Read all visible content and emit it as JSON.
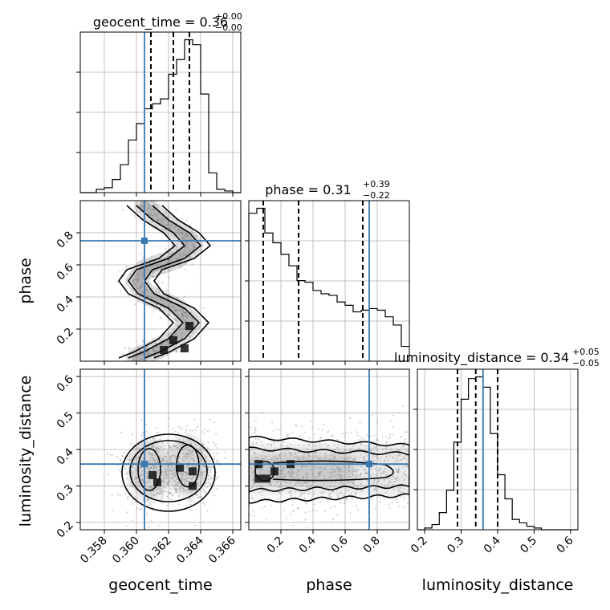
{
  "chart_data": {
    "type": "corner",
    "parameters": [
      "geocent_time",
      "phase",
      "luminosity_distance"
    ],
    "truths": [
      0.3605,
      0.75,
      0.36
    ],
    "truth_color": "#3b78b0",
    "grid": true,
    "panels": {
      "hist_geocent_time": {
        "title": "geocent_time = 0.36",
        "title_sup": "+0.00",
        "title_sub": "−0.00",
        "xlim": [
          0.3565,
          0.3665
        ],
        "quantiles": [
          0.3609,
          0.3623,
          0.3633
        ],
        "bin_edges": [
          0.3565,
          0.357,
          0.3575,
          0.358,
          0.3585,
          0.359,
          0.3595,
          0.36,
          0.3605,
          0.361,
          0.3615,
          0.362,
          0.3625,
          0.363,
          0.3635,
          0.364,
          0.3645,
          0.365,
          0.3655,
          0.366,
          0.3665
        ],
        "counts": [
          0,
          0,
          2,
          3,
          8,
          17,
          32,
          42,
          51,
          54,
          57,
          72,
          81,
          93,
          90,
          60,
          12,
          2,
          1,
          0
        ]
      },
      "hist_phase": {
        "title": "phase = 0.31",
        "title_sup": "+0.39",
        "title_sub": "−0.22",
        "xlim": [
          0.0,
          1.0
        ],
        "quantiles": [
          0.09,
          0.31,
          0.71
        ],
        "bin_edges": [
          0.0,
          0.05,
          0.1,
          0.15,
          0.2,
          0.25,
          0.3,
          0.35,
          0.4,
          0.45,
          0.5,
          0.55,
          0.6,
          0.65,
          0.7,
          0.75,
          0.8,
          0.85,
          0.9,
          0.95,
          1.0
        ],
        "counts": [
          90,
          93,
          78,
          72,
          65,
          58,
          49,
          48,
          43,
          41,
          40,
          36,
          34,
          30,
          31,
          32,
          31,
          27,
          22,
          9
        ]
      },
      "hist_luminosity_distance": {
        "title": "luminosity_distance = 0.34",
        "title_sup": "+0.05",
        "title_sub": "−0.05",
        "xlim": [
          0.18,
          0.62
        ],
        "quantiles": [
          0.29,
          0.34,
          0.4
        ],
        "bin_edges": [
          0.18,
          0.2,
          0.22,
          0.24,
          0.26,
          0.28,
          0.3,
          0.32,
          0.34,
          0.36,
          0.38,
          0.4,
          0.42,
          0.44,
          0.46,
          0.48,
          0.5,
          0.52,
          0.54,
          0.56,
          0.58,
          0.6,
          0.62
        ],
        "counts": [
          0,
          1,
          3,
          10,
          23,
          51,
          76,
          88,
          89,
          83,
          56,
          32,
          18,
          6,
          4,
          2,
          1,
          0,
          0,
          0,
          0,
          0
        ]
      },
      "phase_vs_geocent_time": {
        "xlim": [
          0.3565,
          0.3665
        ],
        "ylim": [
          0.0,
          1.0
        ],
        "density_path": [
          [
            0.3605,
            0.97
          ],
          [
            0.3615,
            0.88
          ],
          [
            0.3628,
            0.8
          ],
          [
            0.3635,
            0.72
          ],
          [
            0.3625,
            0.64
          ],
          [
            0.3605,
            0.57
          ],
          [
            0.36,
            0.5
          ],
          [
            0.3606,
            0.42
          ],
          [
            0.3625,
            0.33
          ],
          [
            0.3634,
            0.24
          ],
          [
            0.3625,
            0.14
          ],
          [
            0.361,
            0.06
          ],
          [
            0.36,
            0.02
          ]
        ],
        "dark_cells": [
          [
            0.3623,
            0.13
          ],
          [
            0.363,
            0.08
          ],
          [
            0.3633,
            0.22
          ],
          [
            0.3617,
            0.07
          ]
        ]
      },
      "luminosity_distance_vs_geocent_time": {
        "xlim": [
          0.3565,
          0.3665
        ],
        "ylim": [
          0.18,
          0.62
        ],
        "modes": [
          [
            0.3608,
            0.345
          ],
          [
            0.3632,
            0.355
          ]
        ],
        "dark_cells": [
          [
            0.3635,
            0.34
          ],
          [
            0.3635,
            0.3
          ],
          [
            0.3627,
            0.35
          ],
          [
            0.361,
            0.33
          ],
          [
            0.3613,
            0.31
          ]
        ]
      },
      "luminosity_distance_vs_phase": {
        "xlim": [
          0.0,
          1.0
        ],
        "ylim": [
          0.18,
          0.62
        ],
        "band_center": 0.345,
        "dark_cells": [
          [
            0.06,
            0.32
          ],
          [
            0.11,
            0.32
          ],
          [
            0.06,
            0.36
          ],
          [
            0.16,
            0.34
          ],
          [
            0.26,
            0.36
          ]
        ]
      }
    },
    "xticks": {
      "geocent_time": [
        "0.358",
        "0.360",
        "0.362",
        "0.364",
        "0.366"
      ],
      "phase": [
        "0.2",
        "0.4",
        "0.6",
        "0.8"
      ],
      "luminosity_distance": [
        "0.2",
        "0.3",
        "0.4",
        "0.5",
        "0.6"
      ]
    },
    "yticks": {
      "phase": [
        "0.2",
        "0.4",
        "0.6",
        "0.8"
      ],
      "luminosity_distance": [
        "0.2",
        "0.3",
        "0.4",
        "0.5",
        "0.6"
      ]
    },
    "xlabels": [
      "geocent_time",
      "phase",
      "luminosity_distance"
    ],
    "ylabels": [
      "phase",
      "luminosity_distance"
    ]
  }
}
